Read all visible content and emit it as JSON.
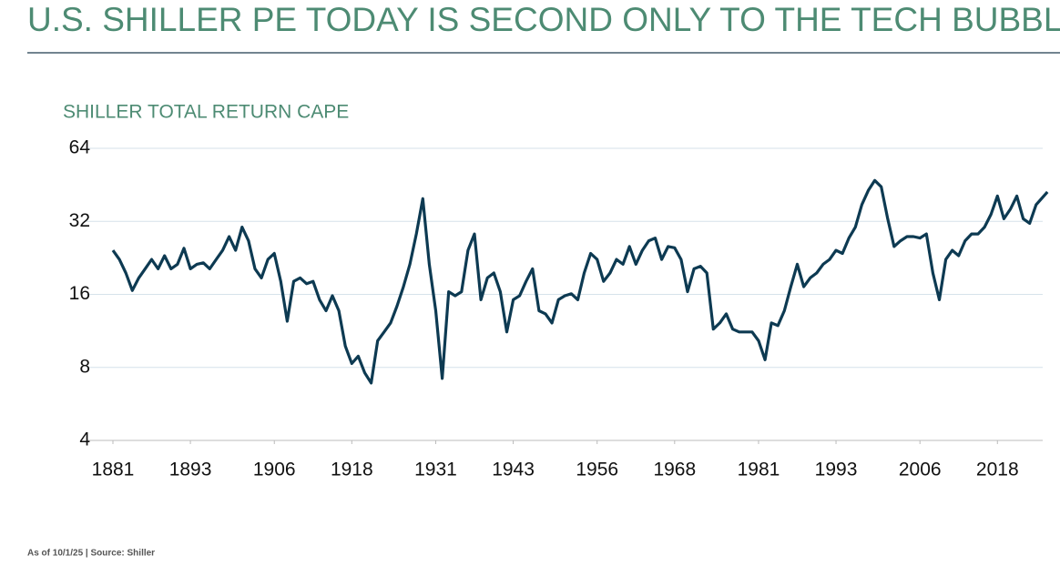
{
  "chart_data": {
    "type": "line",
    "title": "U.S. SHILLER PE TODAY IS SECOND ONLY TO THE TECH BUBBLE",
    "subtitle": "SHILLER TOTAL RETURN CAPE",
    "source": "As of 10/1/25 | Source: Shiller",
    "color": "#0d3a52",
    "log_y": true,
    "grid": true,
    "x": [
      1881,
      1882,
      1883,
      1884,
      1885,
      1886,
      1887,
      1888,
      1889,
      1890,
      1891,
      1892,
      1893,
      1894,
      1895,
      1896,
      1897,
      1898,
      1899,
      1900,
      1901,
      1902,
      1903,
      1904,
      1905,
      1906,
      1907,
      1908,
      1909,
      1910,
      1911,
      1912,
      1913,
      1914,
      1915,
      1916,
      1917,
      1918,
      1919,
      1920,
      1921,
      1922,
      1923,
      1924,
      1925,
      1926,
      1927,
      1928,
      1929,
      1930,
      1931,
      1932,
      1933,
      1934,
      1935,
      1936,
      1937,
      1938,
      1939,
      1940,
      1941,
      1942,
      1943,
      1944,
      1945,
      1946,
      1947,
      1948,
      1949,
      1950,
      1951,
      1952,
      1953,
      1954,
      1955,
      1956,
      1957,
      1958,
      1959,
      1960,
      1961,
      1962,
      1963,
      1964,
      1965,
      1966,
      1967,
      1968,
      1969,
      1970,
      1971,
      1972,
      1973,
      1974,
      1975,
      1976,
      1977,
      1978,
      1979,
      1980,
      1981,
      1982,
      1983,
      1984,
      1985,
      1986,
      1987,
      1988,
      1989,
      1990,
      1991,
      1992,
      1993,
      1994,
      1995,
      1996,
      1997,
      1998,
      1999,
      2000,
      2001,
      2002,
      2003,
      2004,
      2005,
      2006,
      2007,
      2008,
      2009,
      2010,
      2011,
      2012,
      2013,
      2014,
      2015,
      2016,
      2017,
      2018,
      2019,
      2020,
      2021,
      2022,
      2023,
      2024,
      2025.75
    ],
    "values": [
      24.3,
      22.3,
      19.6,
      16.6,
      18.7,
      20.4,
      22.3,
      20.4,
      23.1,
      20.4,
      21.3,
      24.8,
      20.4,
      21.3,
      21.6,
      20.4,
      22.3,
      24.3,
      27.7,
      24.3,
      30.3,
      26.6,
      20.4,
      18.7,
      22.3,
      23.6,
      18.1,
      12.4,
      18.1,
      18.7,
      17.7,
      18.1,
      15.2,
      13.7,
      15.8,
      13.7,
      9.8,
      8.3,
      8.9,
      7.6,
      6.9,
      10.3,
      11.2,
      12.2,
      14.3,
      17.2,
      21.3,
      28.4,
      39.7,
      21.3,
      13.7,
      7.2,
      16.4,
      15.8,
      16.4,
      24.3,
      28.4,
      15.2,
      18.7,
      19.6,
      16.4,
      11.2,
      15.2,
      15.8,
      18.1,
      20.4,
      13.7,
      13.3,
      12.2,
      15.2,
      15.8,
      16.1,
      15.2,
      19.6,
      23.6,
      22.3,
      18.1,
      19.6,
      22.3,
      21.3,
      25.2,
      21.3,
      24.3,
      26.6,
      27.3,
      22.3,
      25.2,
      24.9,
      22.3,
      16.4,
      20.4,
      20.9,
      19.6,
      11.5,
      12.2,
      13.3,
      11.5,
      11.2,
      11.2,
      11.2,
      10.3,
      8.6,
      12.2,
      11.9,
      13.7,
      17.2,
      21.3,
      17.2,
      18.7,
      19.6,
      21.3,
      22.3,
      24.3,
      23.6,
      27.3,
      30.3,
      37.5,
      42.9,
      47.2,
      44.4,
      32.8,
      25.2,
      26.6,
      27.7,
      27.7,
      27.3,
      28.4,
      19.6,
      15.2,
      22.3,
      24.3,
      23.1,
      26.6,
      28.4,
      28.4,
      30.3,
      34.2,
      40.7,
      32.8,
      35.9,
      40.7,
      32.8,
      31.4,
      37.5,
      42.3
    ],
    "xlim": [
      1881,
      2026
    ],
    "xticks": [
      1881,
      1893,
      1906,
      1918,
      1931,
      1943,
      1956,
      1968,
      1981,
      1993,
      2006,
      2018
    ],
    "ylim": [
      4,
      64
    ],
    "yticks": [
      4,
      8,
      16,
      32,
      64
    ]
  }
}
